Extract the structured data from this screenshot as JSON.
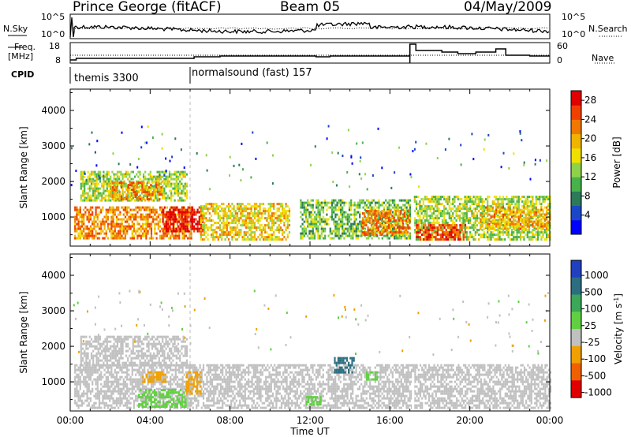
{
  "header": {
    "station": "Prince George (fitACF)",
    "beam": "Beam 05",
    "date": "04/May/2009"
  },
  "side_labels": {
    "nsky": "N.Sky",
    "nsearch": "N.Search",
    "freq_line1": "Freq.",
    "freq_line2": "[MHz]",
    "nave": "Nave",
    "cpid": "CPID"
  },
  "noise_panel": {
    "left_ticks": [
      "10^5",
      "10^0"
    ],
    "right_ticks": [
      "10^5",
      "10^0"
    ]
  },
  "freq_panel": {
    "left_ticks": [
      "18",
      "8"
    ],
    "right_ticks": [
      "60",
      "0"
    ]
  },
  "cpid_panel": {
    "segments": [
      {
        "label": "themis 3300",
        "start": "00:00",
        "end": "06:00"
      },
      {
        "label": "normalsound (fast) 157",
        "start": "06:00",
        "end": "24:00"
      }
    ]
  },
  "power_colorbar": {
    "label": "Power [dB]",
    "ticks": [
      "4",
      "8",
      "12",
      "16",
      "20",
      "24",
      "28"
    ],
    "colors": [
      "#0000ff",
      "#1c46c8",
      "#2b7a58",
      "#47b24a",
      "#8ed24a",
      "#f0e000",
      "#f0b400",
      "#f07800",
      "#f04000",
      "#e00000"
    ]
  },
  "velocity_colorbar": {
    "label": "Velocity [m s",
    "label_sup": "-1",
    "label_end": "]",
    "ticks": [
      "1000",
      "500",
      "100",
      "25",
      "-25",
      "-100",
      "-500",
      "-1000"
    ],
    "colors": [
      "#2040c0",
      "#2c6e80",
      "#3aa858",
      "#60d040",
      "#c0c0c0",
      "#f0a000",
      "#f06000",
      "#e00000"
    ]
  },
  "chart_data": [
    {
      "type": "heatmap",
      "name_role": "power",
      "xlabel": "",
      "ylabel": "Slant Range [km]",
      "xlim_hours": [
        0,
        24
      ],
      "ylim_km": [
        180,
        4600
      ],
      "yticks": [
        "1000",
        "2000",
        "3000",
        "4000"
      ],
      "xticks": [
        "00:00",
        "04:00",
        "08:00",
        "12:00",
        "16:00",
        "20:00",
        "00:00"
      ],
      "value_range_db": [
        0,
        30
      ],
      "echo_regions": [
        {
          "t0": 0.2,
          "t1": 6.1,
          "r0": 400,
          "r1": 1300,
          "db": 22
        },
        {
          "t0": 4.6,
          "t1": 6.6,
          "r0": 600,
          "r1": 1300,
          "db": 30
        },
        {
          "t0": 0.5,
          "t1": 5.8,
          "r0": 1500,
          "r1": 2300,
          "db": 14
        },
        {
          "t0": 2.0,
          "t1": 4.6,
          "r0": 1500,
          "r1": 2000,
          "db": 22
        },
        {
          "t0": 6.5,
          "t1": 11.0,
          "r0": 400,
          "r1": 1400,
          "db": 18
        },
        {
          "t0": 11.5,
          "t1": 17.0,
          "r0": 400,
          "r1": 1500,
          "db": 12
        },
        {
          "t0": 14.6,
          "t1": 17.0,
          "r0": 500,
          "r1": 1200,
          "db": 22
        },
        {
          "t0": 17.2,
          "t1": 24.0,
          "r0": 400,
          "r1": 1600,
          "db": 14
        },
        {
          "t0": 17.3,
          "t1": 19.8,
          "r0": 400,
          "r1": 800,
          "db": 26
        },
        {
          "t0": 20.5,
          "t1": 24.0,
          "r0": 700,
          "r1": 1300,
          "db": 20
        }
      ]
    },
    {
      "type": "heatmap",
      "name_role": "velocity",
      "xlabel": "Time UT",
      "ylabel": "Slant Range [km]",
      "xlim_hours": [
        0,
        24
      ],
      "ylim_km": [
        180,
        4600
      ],
      "yticks": [
        "1000",
        "2000",
        "3000",
        "4000"
      ],
      "xticks": [
        "00:00",
        "04:00",
        "08:00",
        "12:00",
        "16:00",
        "20:00",
        "00:00"
      ],
      "echo_regions": [
        {
          "t0": 0.2,
          "t1": 24.0,
          "r0": 300,
          "r1": 1500,
          "v": 0
        },
        {
          "t0": 0.5,
          "t1": 5.8,
          "r0": 1500,
          "r1": 2300,
          "v": 0
        },
        {
          "t0": 3.4,
          "t1": 5.8,
          "r0": 300,
          "r1": 800,
          "v": 150
        },
        {
          "t0": 5.8,
          "t1": 6.5,
          "r0": 700,
          "r1": 1300,
          "v": -150
        },
        {
          "t0": 3.6,
          "t1": 4.8,
          "r0": 1000,
          "r1": 1300,
          "v": -150
        },
        {
          "t0": 13.2,
          "t1": 14.2,
          "r0": 1300,
          "r1": 1700,
          "v": 600
        },
        {
          "t0": 14.8,
          "t1": 15.4,
          "r0": 1100,
          "r1": 1300,
          "v": 150
        },
        {
          "t0": 11.8,
          "t1": 12.6,
          "r0": 400,
          "r1": 600,
          "v": 150
        }
      ]
    }
  ]
}
